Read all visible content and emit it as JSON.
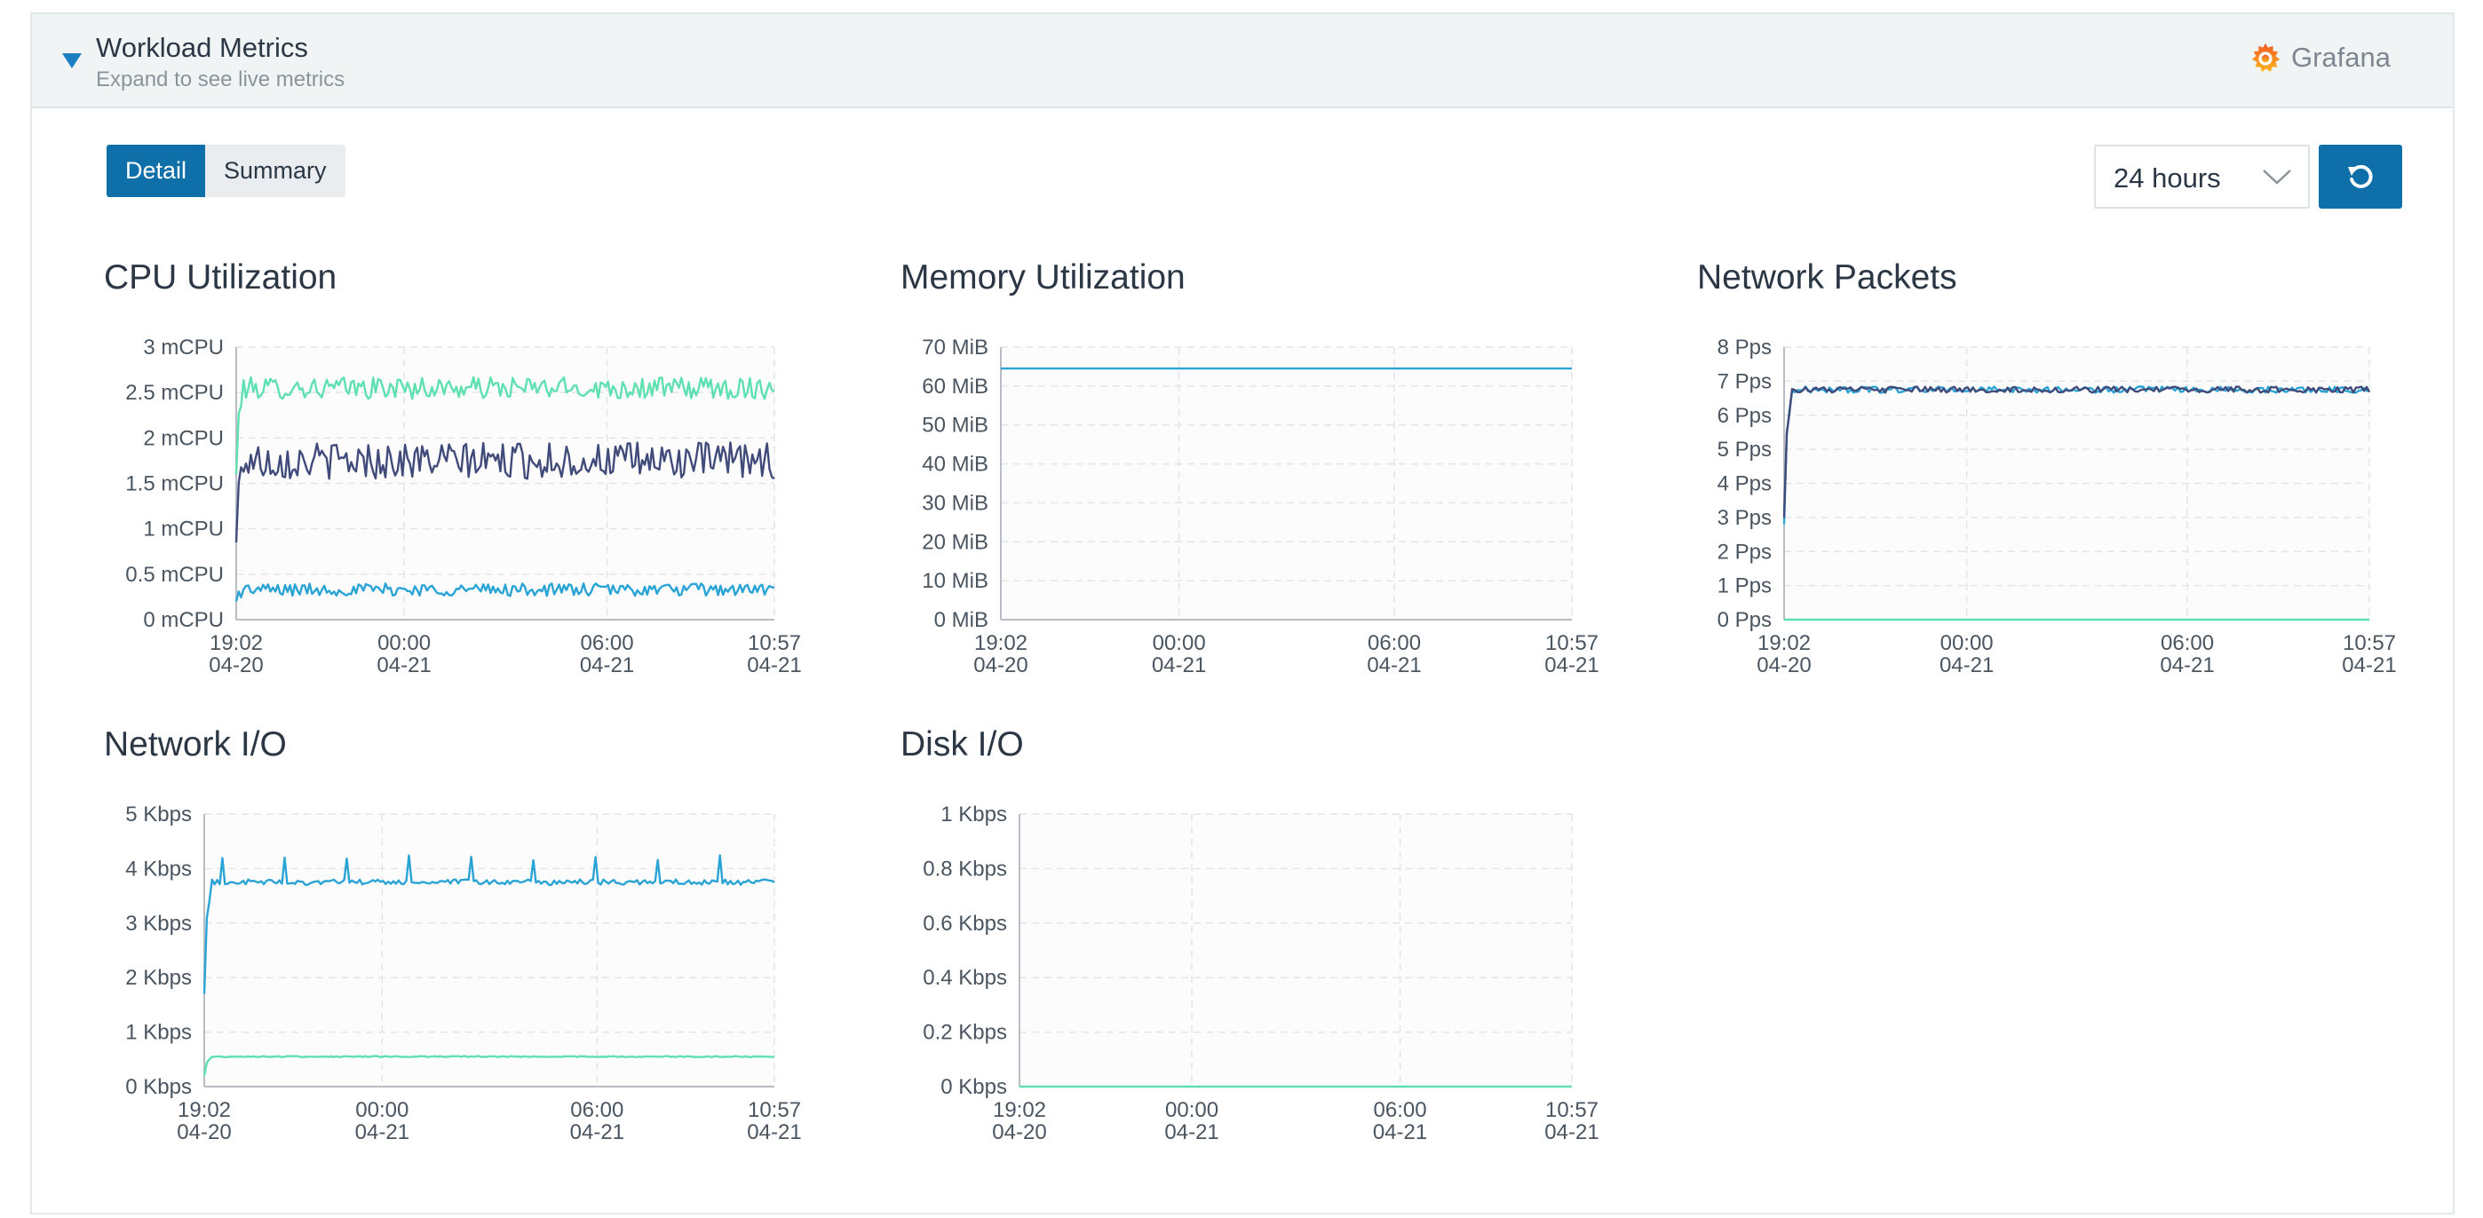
{
  "header": {
    "title": "Workload Metrics",
    "subtitle": "Expand to see live metrics",
    "grafana_label": "Grafana"
  },
  "tabs": [
    {
      "label": "Detail",
      "active": true
    },
    {
      "label": "Summary",
      "active": false
    }
  ],
  "range_select": {
    "value": "24 hours"
  },
  "colors": {
    "primary": "#0f6fa8",
    "series_green": "#5fe0b0",
    "series_navy": "#404b7a",
    "series_blue": "#2aa3d5",
    "grafana_orange": "#f46800"
  },
  "icons": {
    "caret": "caret-down-icon",
    "grafana": "grafana-logo-icon",
    "chevron": "chevron-down-icon",
    "refresh": "refresh-icon"
  },
  "chart_data": [
    {
      "id": "cpu",
      "type": "line",
      "title": "CPU Utilization",
      "x_ticks": [
        {
          "t": 0,
          "time": "19:02",
          "date": "04-20"
        },
        {
          "t": 298,
          "time": "00:00",
          "date": "04-21"
        },
        {
          "t": 658,
          "time": "06:00",
          "date": "04-21"
        },
        {
          "t": 955,
          "time": "10:57",
          "date": "04-21"
        }
      ],
      "x_range_minutes": [
        0,
        955
      ],
      "ylim": [
        0,
        3
      ],
      "y_ticks": [
        0,
        0.5,
        1,
        1.5,
        2,
        2.5,
        3
      ],
      "y_tick_labels": [
        "0 mCPU",
        "0.5 mCPU",
        "1 mCPU",
        "1.5 mCPU",
        "2 mCPU",
        "2.5 mCPU",
        "3 mCPU"
      ],
      "grid": true,
      "series": [
        {
          "color": "#5fe0b0",
          "approx_level": 2.55,
          "noise": 0.12,
          "start": 1.6
        },
        {
          "color": "#404b7a",
          "approx_level": 1.75,
          "noise": 0.2,
          "start": 0.85
        },
        {
          "color": "#2aa3d5",
          "approx_level": 0.33,
          "noise": 0.07,
          "start": 0.2
        }
      ]
    },
    {
      "id": "memory",
      "type": "line",
      "title": "Memory Utilization",
      "x_ticks": [
        {
          "t": 0,
          "time": "19:02",
          "date": "04-20"
        },
        {
          "t": 298,
          "time": "00:00",
          "date": "04-21"
        },
        {
          "t": 658,
          "time": "06:00",
          "date": "04-21"
        },
        {
          "t": 955,
          "time": "10:57",
          "date": "04-21"
        }
      ],
      "x_range_minutes": [
        0,
        955
      ],
      "ylim": [
        0,
        70
      ],
      "y_ticks": [
        0,
        10,
        20,
        30,
        40,
        50,
        60,
        70
      ],
      "y_tick_labels": [
        "0 MiB",
        "10 MiB",
        "20 MiB",
        "30 MiB",
        "40 MiB",
        "50 MiB",
        "60 MiB",
        "70 MiB"
      ],
      "grid": true,
      "series": [
        {
          "color": "#2aa3d5",
          "approx_level": 64.5,
          "noise": 0,
          "start": 64.5
        }
      ]
    },
    {
      "id": "packets",
      "type": "line",
      "title": "Network Packets",
      "x_ticks": [
        {
          "t": 0,
          "time": "19:02",
          "date": "04-20"
        },
        {
          "t": 298,
          "time": "00:00",
          "date": "04-21"
        },
        {
          "t": 658,
          "time": "06:00",
          "date": "04-21"
        },
        {
          "t": 955,
          "time": "10:57",
          "date": "04-21"
        }
      ],
      "x_range_minutes": [
        0,
        955
      ],
      "ylim": [
        0,
        8
      ],
      "y_ticks": [
        0,
        1,
        2,
        3,
        4,
        5,
        6,
        7,
        8
      ],
      "y_tick_labels": [
        "0 Pps",
        "1 Pps",
        "2 Pps",
        "3 Pps",
        "4 Pps",
        "5 Pps",
        "6 Pps",
        "7 Pps",
        "8 Pps"
      ],
      "grid": true,
      "series": [
        {
          "color": "#2aa3d5",
          "approx_level": 6.75,
          "noise": 0.09,
          "start": 2.8
        },
        {
          "color": "#404b7a",
          "approx_level": 6.75,
          "noise": 0.09,
          "start": 3.0
        },
        {
          "color": "#5fe0b0",
          "approx_level": 0,
          "noise": 0,
          "start": 0
        }
      ]
    },
    {
      "id": "netio",
      "type": "line",
      "title": "Network I/O",
      "x_ticks": [
        {
          "t": 0,
          "time": "19:02",
          "date": "04-20"
        },
        {
          "t": 298,
          "time": "00:00",
          "date": "04-21"
        },
        {
          "t": 658,
          "time": "06:00",
          "date": "04-21"
        },
        {
          "t": 955,
          "time": "10:57",
          "date": "04-21"
        }
      ],
      "x_range_minutes": [
        0,
        955
      ],
      "ylim": [
        0,
        5
      ],
      "y_ticks": [
        0,
        1,
        2,
        3,
        4,
        5
      ],
      "y_tick_labels": [
        "0 Kbps",
        "1 Kbps",
        "2 Kbps",
        "3 Kbps",
        "4 Kbps",
        "5 Kbps"
      ],
      "grid": true,
      "series": [
        {
          "color": "#2aa3d5",
          "approx_level": 3.75,
          "noise": 0.05,
          "start": 1.7,
          "spikes": 0.45
        },
        {
          "color": "#5fe0b0",
          "approx_level": 0.55,
          "noise": 0.01,
          "start": 0.2
        }
      ]
    },
    {
      "id": "diskio",
      "type": "line",
      "title": "Disk I/O",
      "x_ticks": [
        {
          "t": 0,
          "time": "19:02",
          "date": "04-20"
        },
        {
          "t": 298,
          "time": "00:00",
          "date": "04-21"
        },
        {
          "t": 658,
          "time": "06:00",
          "date": "04-21"
        },
        {
          "t": 955,
          "time": "10:57",
          "date": "04-21"
        }
      ],
      "x_range_minutes": [
        0,
        955
      ],
      "ylim": [
        0,
        1
      ],
      "y_ticks": [
        0,
        0.2,
        0.4,
        0.6,
        0.8,
        1
      ],
      "y_tick_labels": [
        "0 Kbps",
        "0.2 Kbps",
        "0.4 Kbps",
        "0.6 Kbps",
        "0.8 Kbps",
        "1 Kbps"
      ],
      "grid": true,
      "series": [
        {
          "color": "#5fe0b0",
          "approx_level": 0,
          "noise": 0,
          "start": 0
        }
      ]
    }
  ]
}
